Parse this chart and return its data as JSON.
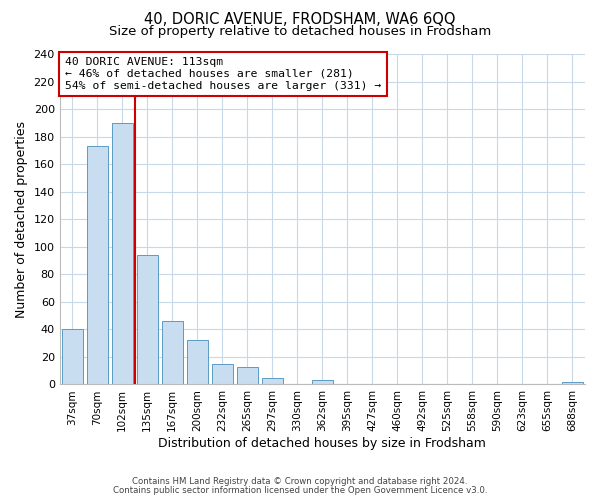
{
  "title": "40, DORIC AVENUE, FRODSHAM, WA6 6QQ",
  "subtitle": "Size of property relative to detached houses in Frodsham",
  "xlabel": "Distribution of detached houses by size in Frodsham",
  "ylabel": "Number of detached properties",
  "bar_labels": [
    "37sqm",
    "70sqm",
    "102sqm",
    "135sqm",
    "167sqm",
    "200sqm",
    "232sqm",
    "265sqm",
    "297sqm",
    "330sqm",
    "362sqm",
    "395sqm",
    "427sqm",
    "460sqm",
    "492sqm",
    "525sqm",
    "558sqm",
    "590sqm",
    "623sqm",
    "655sqm",
    "688sqm"
  ],
  "bar_values": [
    40,
    173,
    190,
    94,
    46,
    32,
    15,
    13,
    5,
    0,
    3,
    0,
    0,
    0,
    0,
    0,
    0,
    0,
    0,
    0,
    2
  ],
  "bar_color": "#c9ddf0",
  "bar_edge_color": "#5a9cc5",
  "vline_x": 2.5,
  "vline_color": "#cc0000",
  "ylim": [
    0,
    240
  ],
  "yticks": [
    0,
    20,
    40,
    60,
    80,
    100,
    120,
    140,
    160,
    180,
    200,
    220,
    240
  ],
  "annotation_title": "40 DORIC AVENUE: 113sqm",
  "annotation_line1": "← 46% of detached houses are smaller (281)",
  "annotation_line2": "54% of semi-detached houses are larger (331) →",
  "footer1": "Contains HM Land Registry data © Crown copyright and database right 2024.",
  "footer2": "Contains public sector information licensed under the Open Government Licence v3.0.",
  "bg_color": "#ffffff",
  "grid_color": "#c8d8e8",
  "title_fontsize": 10.5,
  "subtitle_fontsize": 9.5
}
